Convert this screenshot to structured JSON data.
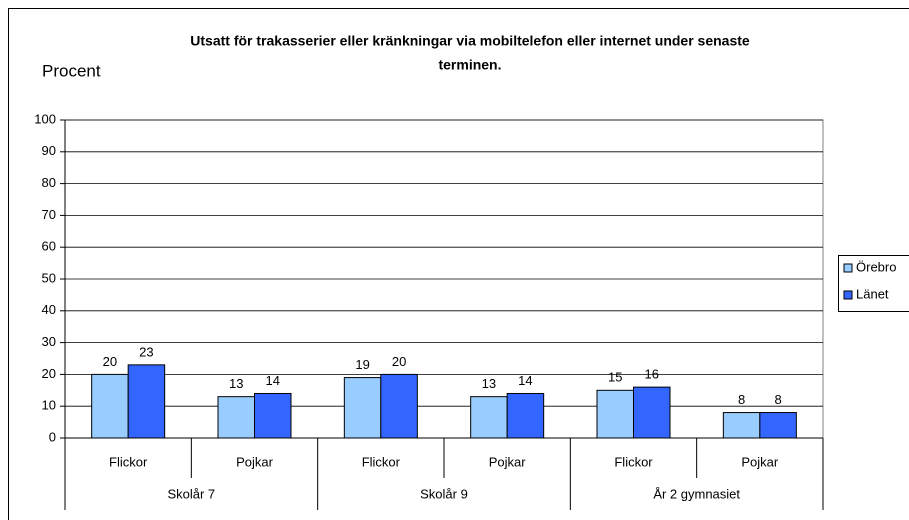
{
  "chart_data": {
    "type": "bar",
    "title": [
      "Utsatt för trakasserier eller kränkningar via mobiltelefon eller internet under senaste",
      "terminen."
    ],
    "y_label": "Procent",
    "categories": [
      "Flickor",
      "Pojkar",
      "Flickor",
      "Pojkar",
      "Flickor",
      "Pojkar"
    ],
    "groups": [
      "Skolår 7",
      "Skolår 9",
      "År 2 gymnasiet"
    ],
    "series": [
      {
        "name": "Örebro",
        "color": "#99ccff",
        "values": [
          20,
          13,
          19,
          13,
          15,
          8
        ]
      },
      {
        "name": "Länet",
        "color": "#3366ff",
        "values": [
          23,
          14,
          20,
          14,
          16,
          8
        ]
      }
    ],
    "ylim": [
      0,
      100
    ],
    "yticks": [
      0,
      10,
      20,
      30,
      40,
      50,
      60,
      70,
      80,
      90,
      100
    ],
    "grid": true,
    "legend": "right"
  }
}
